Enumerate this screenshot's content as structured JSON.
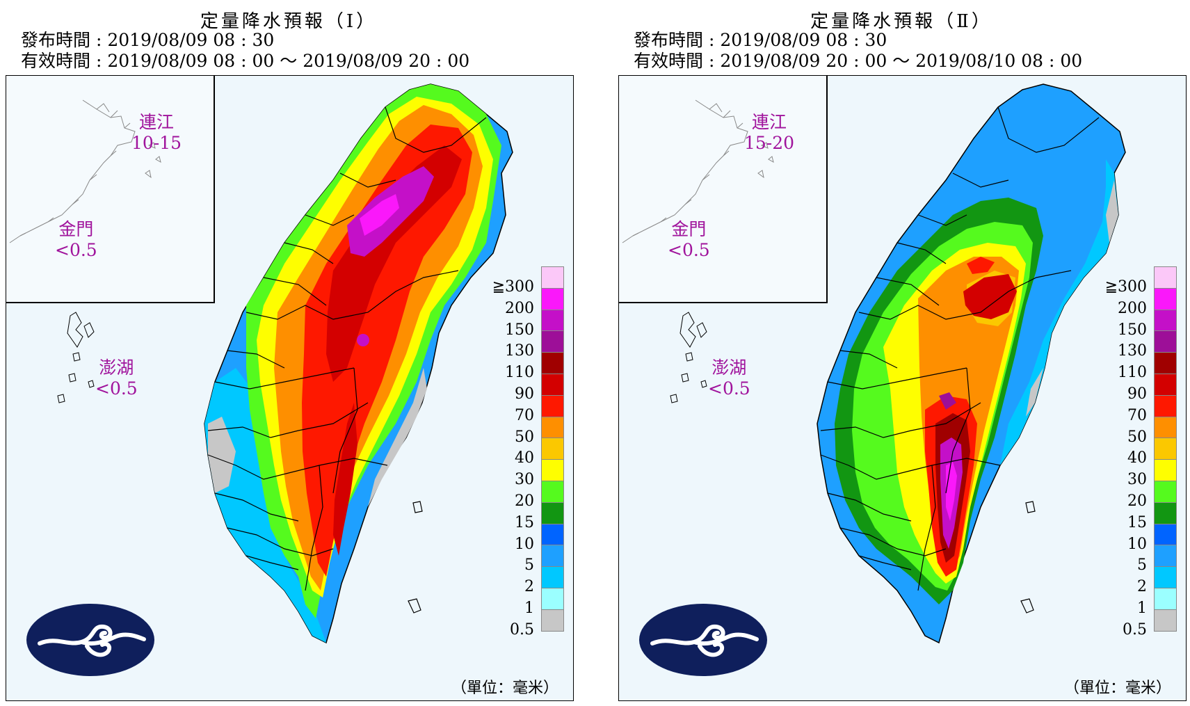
{
  "panels": [
    {
      "title": "定量降水預報（Ⅰ）",
      "issue_time": "發布時間 : 2019/08/09 08 : 30",
      "valid_time": "有效時間 : 2019/08/09 08 : 00 ～ 2019/08/09 20 : 00",
      "islands": {
        "lienchiang": {
          "name": "連江",
          "value": "10-15"
        },
        "kinmen": {
          "name": "金門",
          "value": "<0.5"
        },
        "penghu": {
          "name": "澎湖",
          "value": "<0.5"
        }
      },
      "unit": "（單位：毫米）"
    },
    {
      "title": "定量降水預報（Ⅱ）",
      "issue_time": "發布時間 : 2019/08/09 08 : 30",
      "valid_time": "有效時間 : 2019/08/09 20 : 00 ～ 2019/08/10 08 : 00",
      "islands": {
        "lienchiang": {
          "name": "連江",
          "value": "15-20"
        },
        "kinmen": {
          "name": "金門",
          "value": "<0.5"
        },
        "penghu": {
          "name": "澎湖",
          "value": "<0.5"
        }
      },
      "unit": "（單位：毫米）"
    }
  ],
  "legend": {
    "ticks": [
      "≧300",
      "200",
      "150",
      "130",
      "110",
      "90",
      "70",
      "50",
      "40",
      "30",
      "20",
      "15",
      "10",
      "5",
      "2",
      "1",
      "0.5"
    ],
    "colors": [
      "#fbc8f8",
      "#fa18fa",
      "#c410c8",
      "#9d0f98",
      "#a00000",
      "#d30000",
      "#fe1800",
      "#fe8f00",
      "#fbc800",
      "#fefe00",
      "#55fa1e",
      "#129612",
      "#0064ff",
      "#1ea0ff",
      "#00c8ff",
      "#9bffff",
      "#c7c7c7"
    ]
  },
  "colors": {
    "sea": "#eef7fc",
    "title_text": "#000000",
    "island_label": "#a0139c",
    "logo": "#0f1f5c"
  }
}
